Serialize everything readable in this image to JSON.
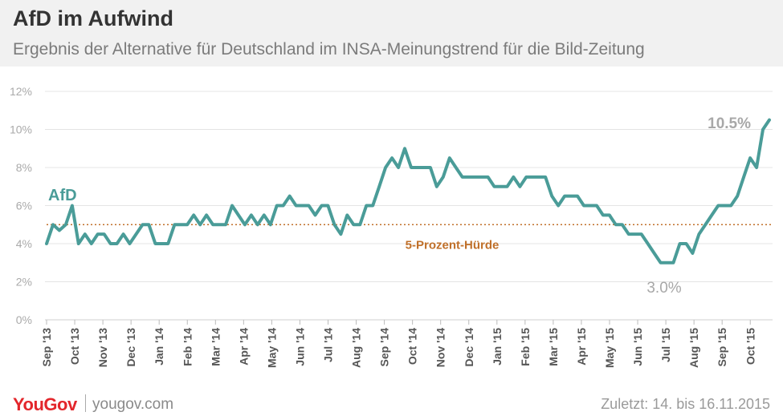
{
  "header": {
    "title": "AfD im Aufwind",
    "subtitle": "Ergebnis der Alternative für Deutschland im  INSA-Meinungstrend für die Bild-Zeitung"
  },
  "footer": {
    "logo_you": "You",
    "logo_gov": "Gov",
    "site": "yougov.com",
    "updated": "Zuletzt: 14. bis 16.11.2015"
  },
  "colors": {
    "line": "#4a9c98",
    "threshold": "#c0702a",
    "grid": "#e4e4e4",
    "axis_text": "#aaaaaa",
    "tick_label": "#555555",
    "annotation_grey": "#a8a8a8"
  },
  "chart_data": {
    "type": "line",
    "title": "AfD im Aufwind",
    "subtitle": "Ergebnis der Alternative für Deutschland im  INSA-Meinungstrend für die Bild-Zeitung",
    "y_ticks": [
      "0%",
      "2%",
      "4%",
      "6%",
      "8%",
      "10%",
      "12%"
    ],
    "ylim": [
      0,
      12
    ],
    "y_unit": "%",
    "grid": "horizontal",
    "x_tick_labels": [
      "Sep '13",
      "Oct '13",
      "Nov '13",
      "Dec '13",
      "Jan '14",
      "Feb '14",
      "Mar '14",
      "Apr '14",
      "May '14",
      "Jun '14",
      "Jul '14",
      "Aug '14",
      "Sep '14",
      "Oct '14",
      "Nov '14",
      "Dec '14",
      "Jan '15",
      "Feb '15",
      "Mar '15",
      "Apr '15",
      "May '15",
      "Jun '15",
      "Jul '15",
      "Aug '15",
      "Sep '15",
      "Oct '15"
    ],
    "series": [
      {
        "name": "AfD",
        "values": [
          4,
          5,
          4.7,
          5,
          6,
          4,
          4.5,
          4,
          4.5,
          4.5,
          4,
          4,
          4.5,
          4,
          4.5,
          5,
          5,
          4,
          4,
          4,
          5,
          5,
          5,
          5.5,
          5,
          5.5,
          5,
          5,
          5,
          6,
          5.5,
          5,
          5.5,
          5,
          5.5,
          5,
          6,
          6,
          6.5,
          6,
          6,
          6,
          5.5,
          6,
          6,
          5,
          4.5,
          5.5,
          5,
          5,
          6,
          6,
          7,
          8,
          8.5,
          8,
          9,
          8,
          8,
          8,
          8,
          7,
          7.5,
          8.5,
          8,
          7.5,
          7.5,
          7.5,
          7.5,
          7.5,
          7,
          7,
          7,
          7.5,
          7,
          7.5,
          7.5,
          7.5,
          7.5,
          6.5,
          6,
          6.5,
          6.5,
          6.5,
          6,
          6,
          6,
          5.5,
          5.5,
          5,
          5,
          4.5,
          4.5,
          4.5,
          4,
          3.5,
          3,
          3,
          3,
          4,
          4,
          3.5,
          4.5,
          5,
          5.5,
          6,
          6,
          6,
          6.5,
          7.5,
          8.5,
          8,
          10,
          10.5
        ]
      }
    ],
    "reference_line": {
      "value": 5,
      "label": "5-Prozent-Hürde"
    },
    "annotations": {
      "series_label": "AfD",
      "last_value": "10.5%",
      "min_value": "3.0%"
    }
  }
}
